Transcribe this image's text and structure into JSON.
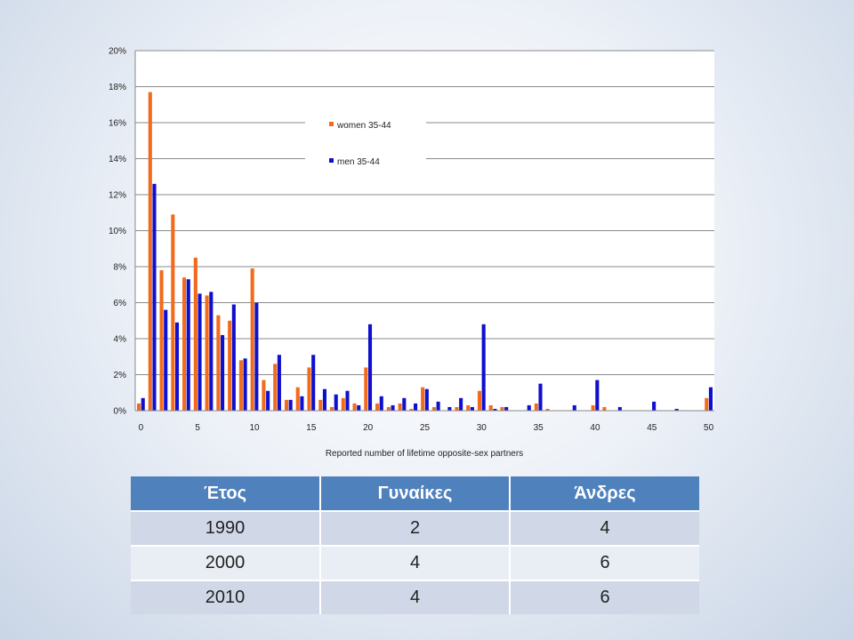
{
  "chart_data": {
    "type": "bar",
    "title": "",
    "xlabel": "Reported number of lifetime opposite-sex partners",
    "ylabel": "",
    "xlim": [
      0,
      50
    ],
    "ylim": [
      0,
      20
    ],
    "y_tick_values": [
      0,
      2,
      4,
      6,
      8,
      10,
      12,
      14,
      16,
      18,
      20
    ],
    "y_tick_labels": [
      "0%",
      "2%",
      "4%",
      "6%",
      "8%",
      "10%",
      "12%",
      "14%",
      "16%",
      "18%",
      "20%"
    ],
    "x_tick_values": [
      0,
      5,
      10,
      15,
      20,
      25,
      30,
      35,
      40,
      45,
      50
    ],
    "x_tick_labels": [
      "0",
      "5",
      "10",
      "15",
      "20",
      "25",
      "30",
      "35",
      "40",
      "45",
      "50"
    ],
    "grid": "horizontal",
    "legend_position": "top-center",
    "x": [
      0,
      1,
      2,
      3,
      4,
      5,
      6,
      7,
      8,
      9,
      10,
      11,
      12,
      13,
      14,
      15,
      16,
      17,
      18,
      19,
      20,
      21,
      22,
      23,
      24,
      25,
      26,
      27,
      28,
      29,
      30,
      31,
      32,
      33,
      34,
      35,
      36,
      37,
      38,
      39,
      40,
      41,
      42,
      43,
      44,
      45,
      46,
      47,
      48,
      49,
      50
    ],
    "series": [
      {
        "name": "women 35-44",
        "color": "#f26b1d",
        "values": [
          0.4,
          17.7,
          7.8,
          10.9,
          7.4,
          8.5,
          6.4,
          5.3,
          5.0,
          2.8,
          7.9,
          1.7,
          2.6,
          0.6,
          1.3,
          2.4,
          0.6,
          0.2,
          0.7,
          0.4,
          2.4,
          0.4,
          0.2,
          0.4,
          0.1,
          1.3,
          0.2,
          0,
          0.2,
          0.3,
          1.1,
          0.3,
          0.2,
          0,
          0,
          0.4,
          0.1,
          0,
          0,
          0,
          0.3,
          0.2,
          0,
          0,
          0,
          0,
          0,
          0,
          0,
          0,
          0.7
        ]
      },
      {
        "name": "men 35-44",
        "color": "#0f0fcf",
        "values": [
          0.7,
          12.6,
          5.6,
          4.9,
          7.3,
          6.5,
          6.6,
          4.2,
          5.9,
          2.9,
          6.0,
          1.1,
          3.1,
          0.6,
          0.8,
          3.1,
          1.2,
          0.9,
          1.1,
          0.3,
          4.8,
          0.8,
          0.3,
          0.7,
          0.4,
          1.2,
          0.5,
          0.2,
          0.7,
          0.2,
          4.8,
          0.1,
          0.2,
          0,
          0.3,
          1.5,
          0,
          0,
          0.3,
          0,
          1.7,
          0,
          0.2,
          0,
          0,
          0.5,
          0,
          0.1,
          0,
          0,
          1.3
        ]
      }
    ]
  },
  "table": {
    "headers": [
      "Έτος",
      "Γυναίκες",
      "Άνδρες"
    ],
    "rows": [
      [
        "1990",
        "2",
        "4"
      ],
      [
        "2000",
        "4",
        "6"
      ],
      [
        "2010",
        "4",
        "6"
      ]
    ]
  }
}
